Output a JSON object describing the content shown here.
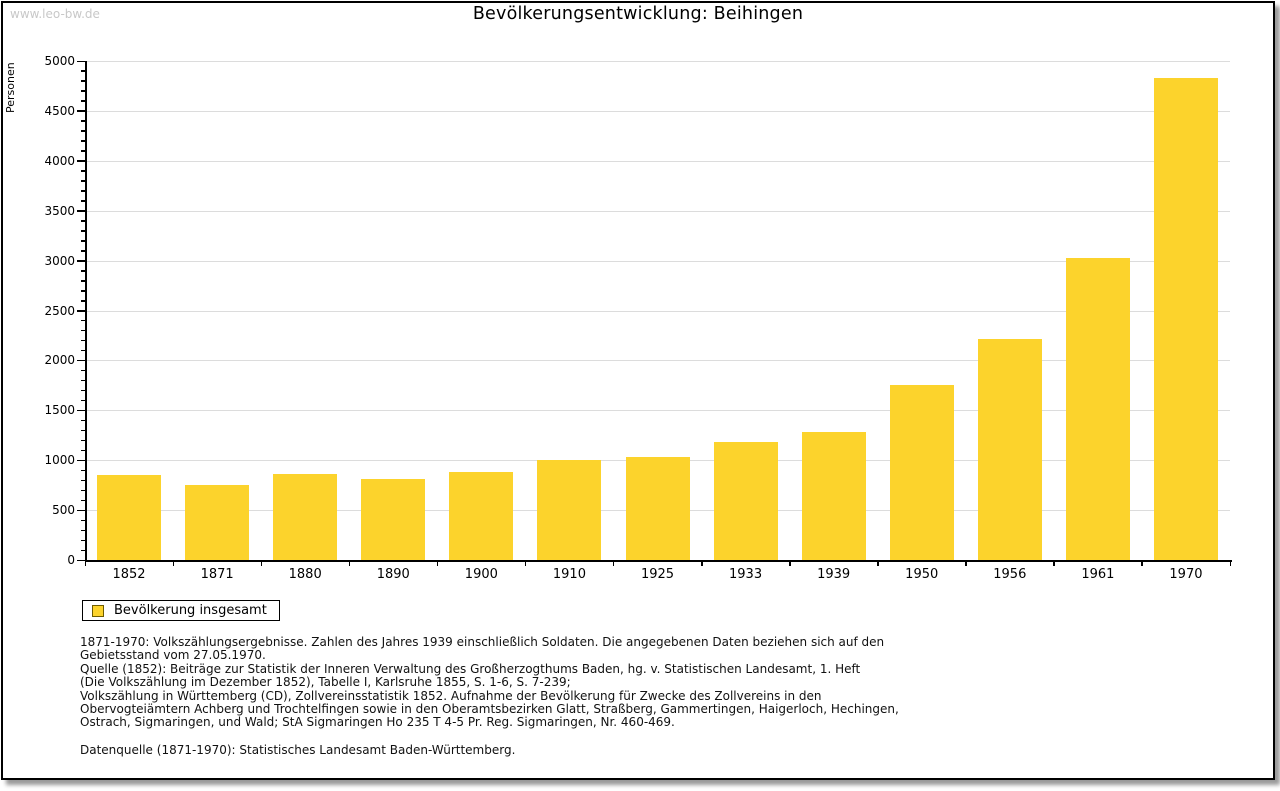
{
  "watermark": "www.leo-bw.de",
  "chart_data": {
    "type": "bar",
    "title": "Bevölkerungsentwicklung: Beihingen",
    "xlabel": "",
    "ylabel": "Personen",
    "categories": [
      "1852",
      "1871",
      "1880",
      "1890",
      "1900",
      "1910",
      "1925",
      "1933",
      "1939",
      "1950",
      "1956",
      "1961",
      "1970"
    ],
    "values": [
      855,
      750,
      865,
      810,
      880,
      1000,
      1030,
      1185,
      1285,
      1755,
      2210,
      3025,
      4825
    ],
    "ylim": [
      0,
      5000
    ],
    "ytick_step": 500,
    "minor_tick_step": 100,
    "grid": true,
    "legend": {
      "label": "Bevölkerung insgesamt",
      "position": "bottom-left"
    },
    "colors": {
      "bar": "#fcd32c",
      "grid": "#dcdcdc",
      "axis": "#000000",
      "watermark": "#c8c8c8"
    }
  },
  "footnotes": {
    "lines": [
      "1871-1970: Volkszählungsergebnisse. Zahlen des Jahres 1939 einschließlich Soldaten. Die angegebenen Daten beziehen sich auf den",
      "Gebietsstand vom 27.05.1970.",
      "Quelle (1852): Beiträge zur Statistik der Inneren Verwaltung des Großherzogthums Baden, hg. v. Statistischen Landesamt, 1. Heft",
      "(Die Volkszählung im Dezember 1852), Tabelle I, Karlsruhe 1855, S. 1-6, S. 7-239;",
      "Volkszählung in Württemberg (CD), Zollvereinsstatistik 1852. Aufnahme der Bevölkerung für Zwecke des Zollvereins in den",
      "Obervogteiämtern Achberg und Trochtelfingen sowie in den Oberamtsbezirken Glatt, Straßberg, Gammertingen, Haigerloch, Hechingen,",
      "Ostrach, Sigmaringen, und Wald; StA Sigmaringen Ho 235 T 4-5 Pr. Reg. Sigmaringen, Nr. 460-469."
    ],
    "datasource": "Datenquelle (1871-1970): Statistisches Landesamt Baden-Württemberg."
  }
}
